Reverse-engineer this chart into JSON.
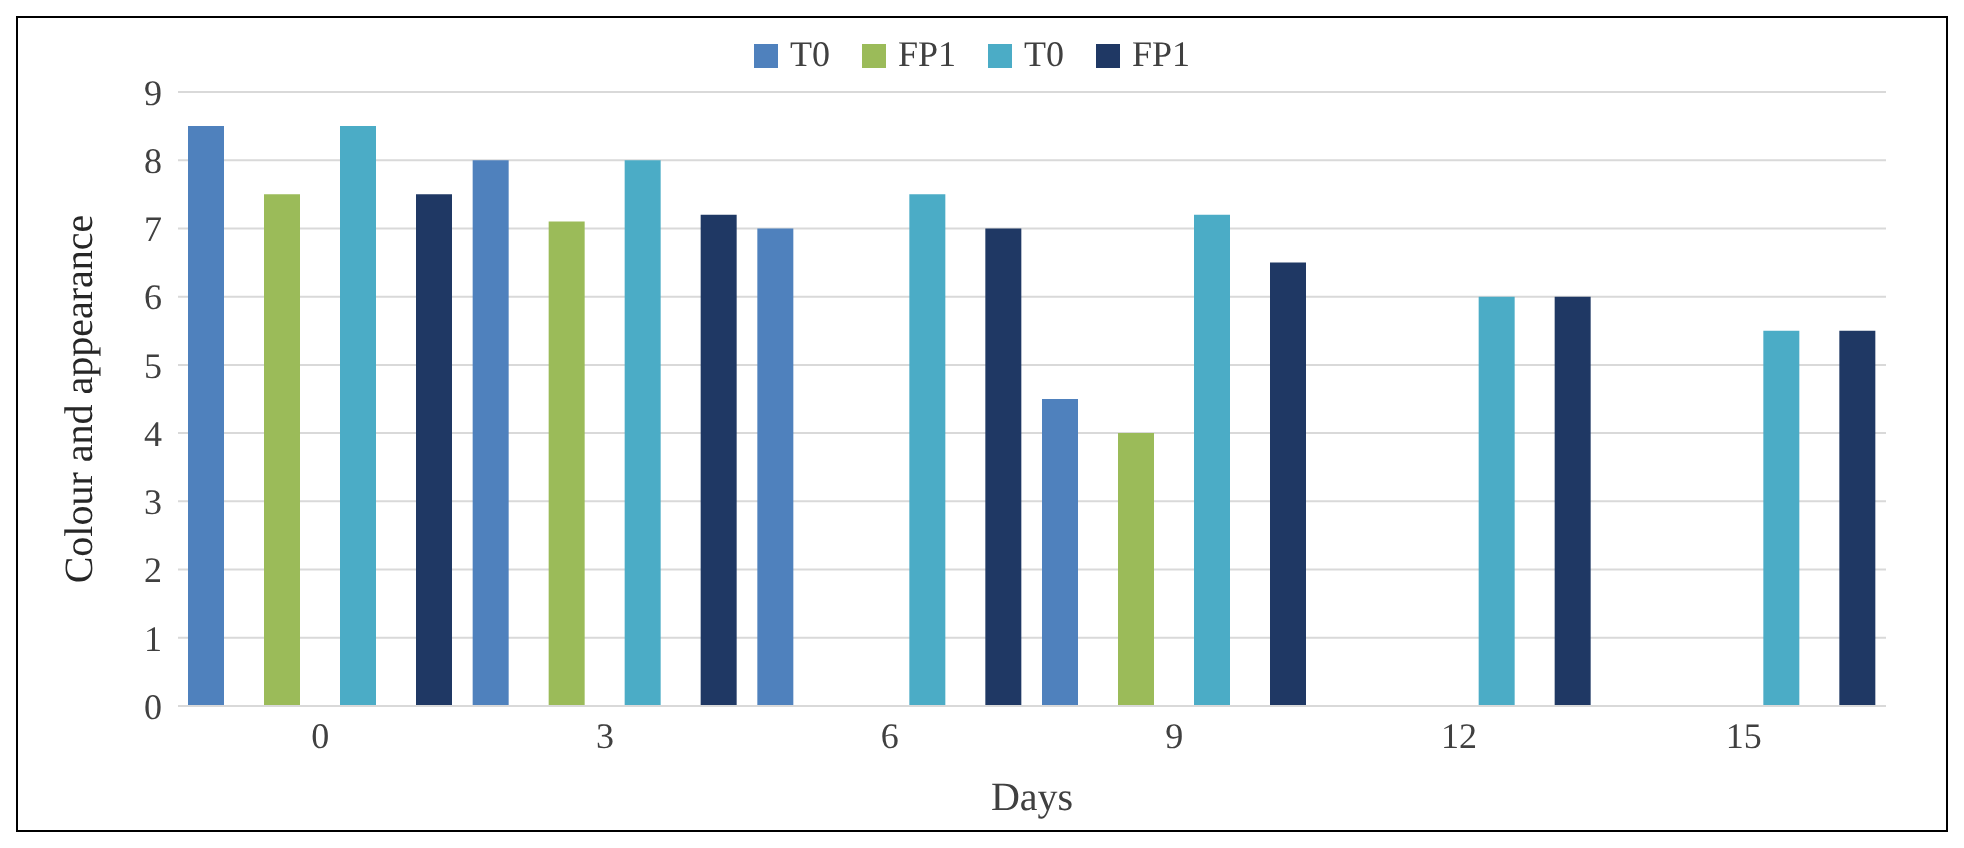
{
  "chart_data": {
    "type": "bar",
    "xlabel": "Days",
    "ylabel": "Colour and appearance",
    "categories": [
      "0",
      "3",
      "6",
      "9",
      "12",
      "15"
    ],
    "series": [
      {
        "name": "T0",
        "color": "#4f81bd",
        "values": [
          8.5,
          8,
          7,
          4.5,
          null,
          null
        ]
      },
      {
        "name": "FP1",
        "color": "#9bbb59",
        "values": [
          7.5,
          7.1,
          0,
          4,
          null,
          null
        ]
      },
      {
        "name": "T0",
        "color": "#4bacc6",
        "values": [
          8.5,
          8,
          7.5,
          7.2,
          6,
          5.5
        ]
      },
      {
        "name": "FP1",
        "color": "#1f3864",
        "values": [
          7.5,
          7.2,
          7,
          6.5,
          6,
          5.5
        ]
      }
    ],
    "ylim": [
      0,
      9
    ],
    "yticks": [
      0,
      1,
      2,
      3,
      4,
      5,
      6,
      7,
      8,
      9
    ],
    "grid": "y",
    "legend": "top"
  }
}
